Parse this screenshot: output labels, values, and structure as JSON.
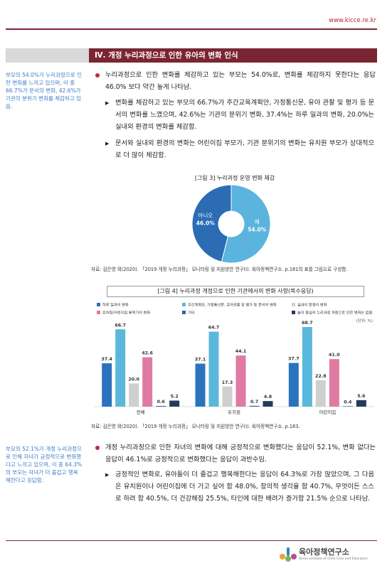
{
  "header": {
    "url": "www.kicce.re.kr"
  },
  "section_title": "Ⅳ. 개정 누리과정으로 인한 유아의 변화 인식",
  "block1": {
    "sidebar": "부모의 54.0%가 누리과정으로 인한 변화를 느끼고 있으며, 이 중 66.7%가 문서의 변화, 42.6%가 기관의 분위기 변화를 체감하고 있음.",
    "bullet": "누리과정으로 인한 변화를 체감하고 있는 부모는 54.0%로, 변화를 체감하지 못한다는 응답 46.0% 보다 약간 높게 나타남.",
    "sub_bullets": [
      "변화를 체감하고 있는 부모의 66.7%가 주간교육계획안, 가정통신문, 유아 관찰 및 평가 등 문서의 변화를 느꼈으며, 42.6%는 기관의 분위기 변화, 37.4%는 하루 일과의 변화, 20.0%는 실내외 환경의 변화를 체감함.",
      "문서와 실내외 환경의 변화는 어린이집 부모가, 기관 분위기의 변화는 유치원 부모가 상대적으로 더 많이 체감함."
    ]
  },
  "figure3": {
    "caption": "[그림 3] 누리과정 운영 변화 체감",
    "type": "donut",
    "categories": [
      "예",
      "아니오"
    ],
    "values": [
      54.0,
      46.0
    ],
    "value_labels": [
      "54.0%",
      "46.0%"
    ],
    "colors": [
      "#5ab4de",
      "#2b6cb4"
    ],
    "source": "자료: 김은영 외(2020). 「2019 개정 누리과정」 모니터링 및 지원방안 연구(Ⅰ). 육아정책연구소. p.181의 표를 그림으로 구성함."
  },
  "figure4": {
    "caption": "[그림 4] 누리과정 개정으로 인한 기관에서의 변화 사항(복수응답)",
    "type": "bar",
    "unit": "(단위: %)",
    "categories": [
      "전체",
      "유치원",
      "어린이집"
    ],
    "series": [
      {
        "name": "하루 일과의 변화",
        "color": "#2b73bd",
        "values": [
          37.4,
          37.1,
          37.7
        ],
        "value_labels": [
          "37.4",
          "37.1",
          "37.7"
        ]
      },
      {
        "name": "주간계획안, 가정통신문, 유아관찰 및 평가 등 문서의 변화",
        "color": "#5ab8dc",
        "values": [
          66.7,
          64.7,
          68.7
        ],
        "value_labels": [
          "66.7",
          "64.7",
          "68.7"
        ]
      },
      {
        "name": "실내외 환경의 변화",
        "color": "#cfcfcf",
        "values": [
          20.0,
          17.3,
          22.8
        ],
        "value_labels": [
          "20.0",
          "17.3",
          "22.8"
        ]
      },
      {
        "name": "유치원/어린이집 분위기의 변화",
        "color": "#e07aa3",
        "values": [
          42.6,
          44.1,
          41.0
        ],
        "value_labels": [
          "42.6",
          "44.1",
          "41.0"
        ]
      },
      {
        "name": "기타",
        "color": "#3560a8",
        "values": [
          0.6,
          0.7,
          0.4
        ],
        "value_labels": [
          "0.6",
          "0.7",
          "0.4"
        ]
      },
      {
        "name": "놀이 중심의 누리과정 개정으로 인한 변화는 없음",
        "color": "#25395c",
        "values": [
          5.2,
          4.8,
          5.6
        ],
        "value_labels": [
          "5.2",
          "4.8",
          "5.6"
        ]
      }
    ],
    "source": "자료: 김은영 외(2020). 「2019 개정 누리과정」 모니터링 및 지원방안 연구(Ⅰ). 육아정책연구소. p.183."
  },
  "block2": {
    "sidebar": "부모의 52.1%가 개정 누리과정으로 인해 자녀가 긍정적으로 변화했다고 느끼고 있으며, 이 중 64.3%의 부모는 자녀가 더 즐겁고 행복해한다고 응답함.",
    "bullet": "개정 누리과정으로 인한 자녀의 변화에 대해 긍정적으로 변화했다는 응답이 52.1%, 변화 없다는 응답이 46.1%로 긍정적으로 변화했다는 응답이 과반수임.",
    "sub_bullets": [
      "긍정적인 변화로, 유아들이 더 즐겁고 행복해한다는 응답이 64.3%로 가장 많았으며, 그 다음은 유치원이나 어린이집에 더 가고 싶어 함 48.0%, 창의적 생각을 함 40.7%, 무엇이든 스스로 하려 함 40.5%, 더 건강해짐 25.5%, 타인에 대한 배려가 증가함 21.5% 순으로 나타남."
    ]
  },
  "footer": {
    "org": "육아정책연구소",
    "org_en": "Korea Institute of Child Care and Education"
  }
}
